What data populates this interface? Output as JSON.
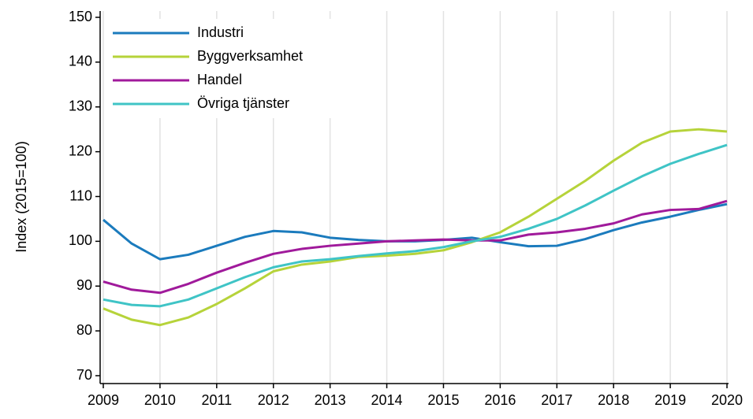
{
  "chart_data": {
    "type": "line",
    "y_label": "Index (2015=100)",
    "x": [
      2009,
      2009.5,
      2010,
      2010.5,
      2011,
      2011.5,
      2012,
      2012.5,
      2013,
      2013.5,
      2014,
      2014.5,
      2015,
      2015.5,
      2016,
      2016.5,
      2017,
      2017.5,
      2018,
      2018.5,
      2019,
      2019.5,
      2020
    ],
    "series": [
      {
        "name": "Industri",
        "color": "#1b7bbd",
        "values": [
          104.8,
          99.5,
          96,
          97,
          99,
          101,
          102.3,
          102,
          100.8,
          100.3,
          100,
          100,
          100.3,
          100.8,
          99.8,
          98.9,
          99,
          100.5,
          102.5,
          104.2,
          105.5,
          107,
          108.3
        ]
      },
      {
        "name": "Byggverksamhet",
        "color": "#b6d33a",
        "values": [
          85,
          82.5,
          81.3,
          83,
          86,
          89.5,
          93.3,
          94.8,
          95.5,
          96.5,
          96.8,
          97.2,
          98,
          99.8,
          102,
          105.5,
          109.5,
          113.5,
          118,
          122,
          124.5,
          125,
          124.5
        ]
      },
      {
        "name": "Handel",
        "color": "#a01a9b",
        "values": [
          91,
          89.2,
          88.5,
          90.5,
          93,
          95.2,
          97.2,
          98.3,
          99,
          99.5,
          100,
          100.2,
          100.4,
          100.2,
          100.2,
          101.5,
          102,
          102.8,
          104,
          106,
          107,
          107.2,
          109
        ]
      },
      {
        "name": "Övriga tjänster",
        "color": "#3fc4c6",
        "values": [
          87,
          85.8,
          85.5,
          87,
          89.5,
          92,
          94.2,
          95.5,
          96,
          96.7,
          97.3,
          97.8,
          98.7,
          100,
          101,
          102.8,
          105,
          108,
          111.3,
          114.5,
          117.3,
          119.5,
          121.5
        ]
      }
    ],
    "xlim": [
      2009,
      2020
    ],
    "xticks": [
      2009,
      2010,
      2011,
      2012,
      2013,
      2014,
      2015,
      2016,
      2017,
      2018,
      2019,
      2020
    ],
    "ylim": [
      70,
      150
    ],
    "yticks": [
      70,
      80,
      90,
      100,
      110,
      120,
      130,
      140,
      150
    ],
    "grid": "x",
    "legend": "upper left"
  }
}
